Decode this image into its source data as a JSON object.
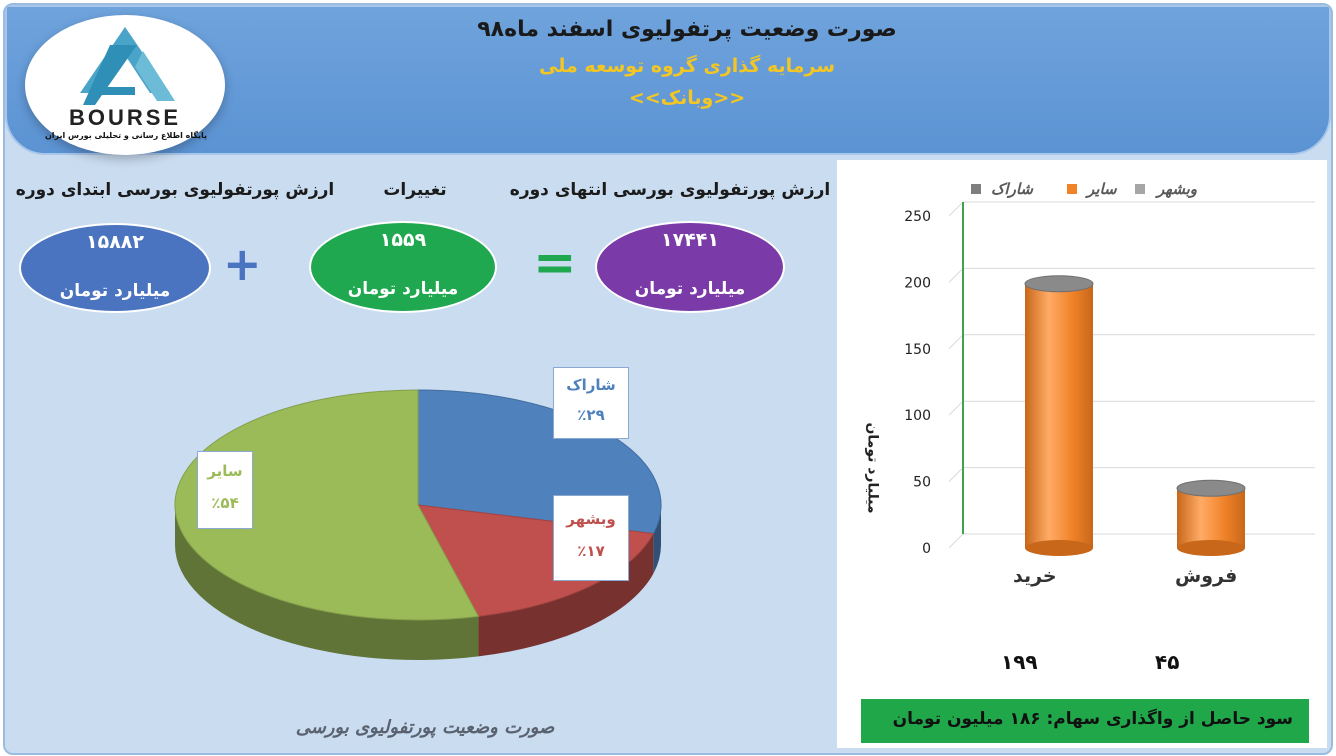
{
  "header": {
    "title": "صورت وضعیت پرتفولیوی اسفند ماه۹۸",
    "subtitle": "سرمایه گذاری گروه توسعه ملی",
    "subtitle2": "<<وبانک>>",
    "logo_word": "BOURSE",
    "logo_caption": "پایگاه اطلاع رسانی و تحلیلی بورس ایران"
  },
  "summary": {
    "end_label": "ارزش پورتفولیوی بورسی انتهای دوره",
    "end_value": "۱۷۴۴۱",
    "change_label": "تغییرات",
    "change_value": "۱۵۵۹",
    "start_label": "ارزش پورتفولیوی بورسی ابتدای دوره",
    "start_value": "۱۵۸۸۲",
    "unit": "میلیارد تومان",
    "plus_symbol": "+",
    "equals_symbol": "="
  },
  "colors": {
    "start_oval": "#4a73c0",
    "change_oval": "#1fa84f",
    "end_oval": "#7a3aa8",
    "pie_blue": "#4f81bd",
    "pie_red": "#c0504d",
    "pie_green": "#9bbb59",
    "bar_orange": "#f08228"
  },
  "pie": {
    "slices": [
      {
        "name": "شاراک",
        "pct": 29,
        "label": "٪۲۹",
        "color": "#4f81bd"
      },
      {
        "name": "وبشهر",
        "pct": 17,
        "label": "٪۱۷",
        "color": "#c0504d"
      },
      {
        "name": "سایر",
        "pct": 54,
        "label": "٪۵۴",
        "color": "#9bbb59"
      }
    ],
    "caption": "صورت وضعیت پورتفولیوی بورسی"
  },
  "chart_data": {
    "type": "bar",
    "categories": [
      "خرید",
      "فروش"
    ],
    "series": [
      {
        "name": "شاراک",
        "values": [
          0,
          0
        ]
      },
      {
        "name": "سایر",
        "values": [
          199,
          45
        ]
      },
      {
        "name": "وبشهر",
        "values": [
          0,
          0
        ]
      }
    ],
    "ylabel": "میلیارد تومان",
    "ylim": [
      0,
      250
    ],
    "yticks": [
      0,
      50,
      100,
      150,
      200,
      250
    ],
    "value_labels": [
      "۱۹۹",
      "۴۵"
    ],
    "legend_position": "top"
  },
  "profit": {
    "text": "سود حاصل از واگذاری سهام: ۱۸۶ میلیون تومان"
  }
}
